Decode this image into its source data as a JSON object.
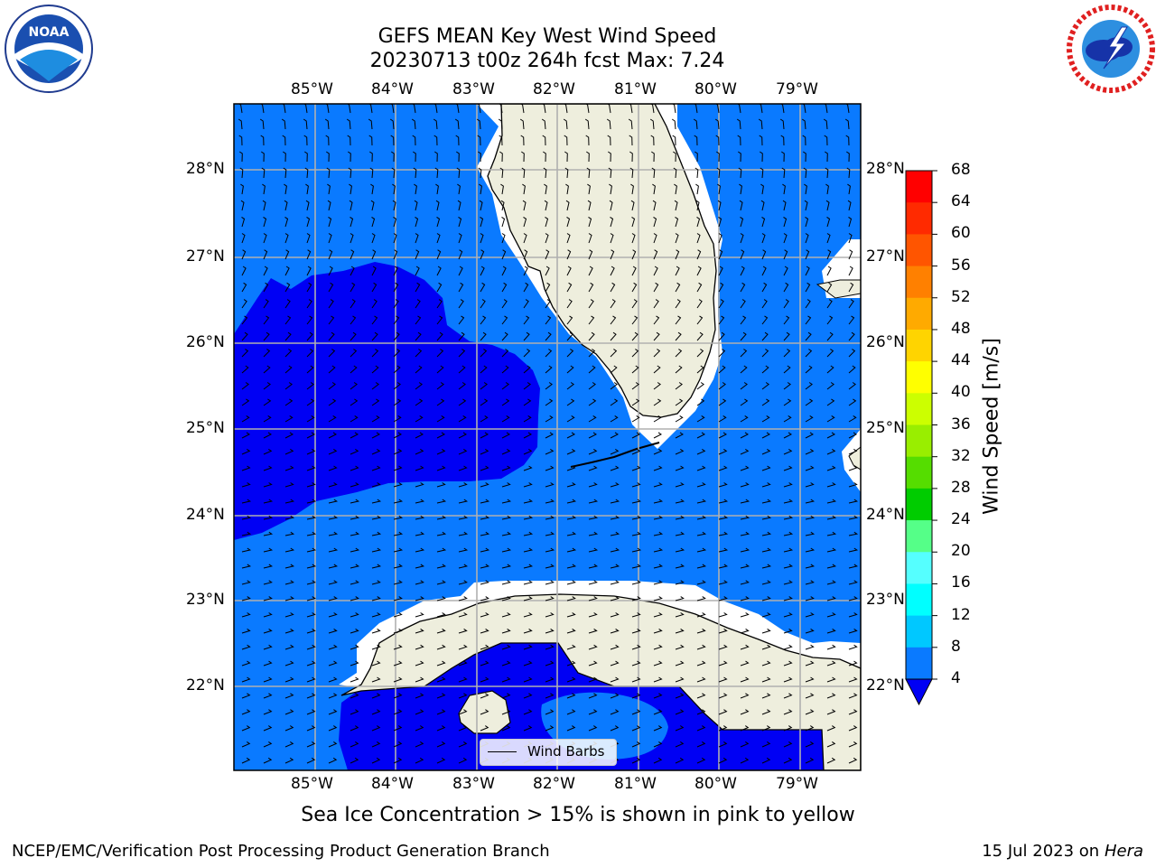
{
  "title_line1": "GEFS MEAN Key West Wind Speed",
  "title_line2": "20230713 t00z 264h fcst   Max: 7.24",
  "logos": {
    "left": {
      "name": "noaa-logo",
      "text": "NOAA",
      "ring_text": "NATIONAL OCEANIC AND ATMOSPHERIC ADMINISTRATION · U.S. DEPARTMENT OF COMMERCE"
    },
    "right": {
      "name": "nws-logo",
      "ring_text": "NATIONAL WEATHER SERVICE"
    }
  },
  "map": {
    "lon_labels": [
      "85°W",
      "84°W",
      "83°W",
      "82°W",
      "81°W",
      "80°W",
      "79°W"
    ],
    "lat_labels": [
      "28°N",
      "27°N",
      "26°N",
      "25°N",
      "24°N",
      "23°N",
      "22°N"
    ],
    "legend_label": "Wind Barbs",
    "colors": {
      "ocean_light": "#0a7aff",
      "ocean_dark": "#0000f4",
      "land": "#eeeedd",
      "grid": "#b0b0b0"
    }
  },
  "colorbar": {
    "label": "Wind Speed [m/s]",
    "ticks": [
      "68",
      "64",
      "60",
      "56",
      "52",
      "48",
      "44",
      "40",
      "36",
      "32",
      "28",
      "24",
      "20",
      "16",
      "12",
      "8",
      "4"
    ],
    "colors": [
      "#ff0000",
      "#ff2a00",
      "#ff5500",
      "#ff8000",
      "#ffaa00",
      "#ffd400",
      "#ffff00",
      "#eeff00",
      "#ccff00",
      "#99ee00",
      "#55dd00",
      "#00cc00",
      "#00ee44",
      "#55ff88",
      "#aaffff",
      "#55ffff",
      "#00ffff",
      "#00e6ff",
      "#00c8ff",
      "#0a7aff",
      "#0000f4"
    ]
  },
  "note": "Sea Ice Concentration > 15% is shown in pink to yellow",
  "footer_left": "NCEP/EMC/Verification Post Processing Product Generation Branch",
  "footer_right_prefix": "15 Jul 2023 on ",
  "footer_right_host": "Hera"
}
